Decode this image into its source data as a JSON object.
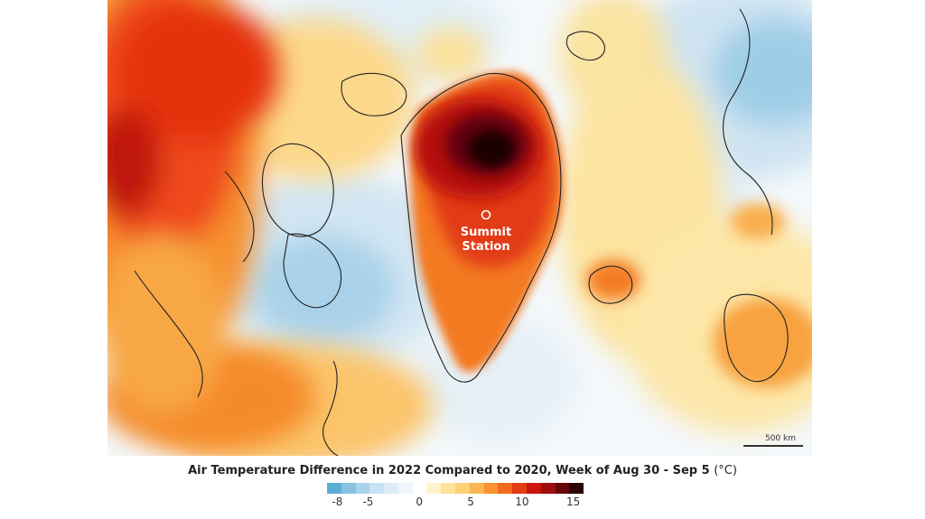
{
  "title": "Air Temperature Difference in 2022 Compared to 2020, Week of Aug 30 - Sep 5",
  "unit": "(°C)",
  "marker": {
    "line1": "Summit",
    "line2": "Station"
  },
  "scale_bar": "500 km",
  "legend": {
    "ticks": [
      "-8",
      "-5",
      "0",
      "5",
      "10",
      "15"
    ],
    "colors": [
      "#5aaed6",
      "#86c2e2",
      "#a9d4ec",
      "#c6e2f3",
      "#dcedf8",
      "#eef6fb",
      "#ffffff",
      "#fff4c8",
      "#ffe39a",
      "#fdd176",
      "#fbb653",
      "#f8932f",
      "#f16a1c",
      "#e33b12",
      "#c9140f",
      "#9a0e10",
      "#67070a",
      "#2e0304"
    ],
    "tick_values": [
      -8,
      -5,
      0,
      5,
      10,
      15
    ],
    "range": [
      -9,
      16
    ]
  },
  "colors": {
    "cold_strong": "#8cc4e4",
    "cold_light": "#d4e8f4",
    "neutral": "#f4f8fb",
    "warm_light": "#fde7a6",
    "warm_mid": "#fbb54f",
    "warm_strong": "#f1441b",
    "hot": "#b80c10",
    "hottest": "#1f0203"
  }
}
